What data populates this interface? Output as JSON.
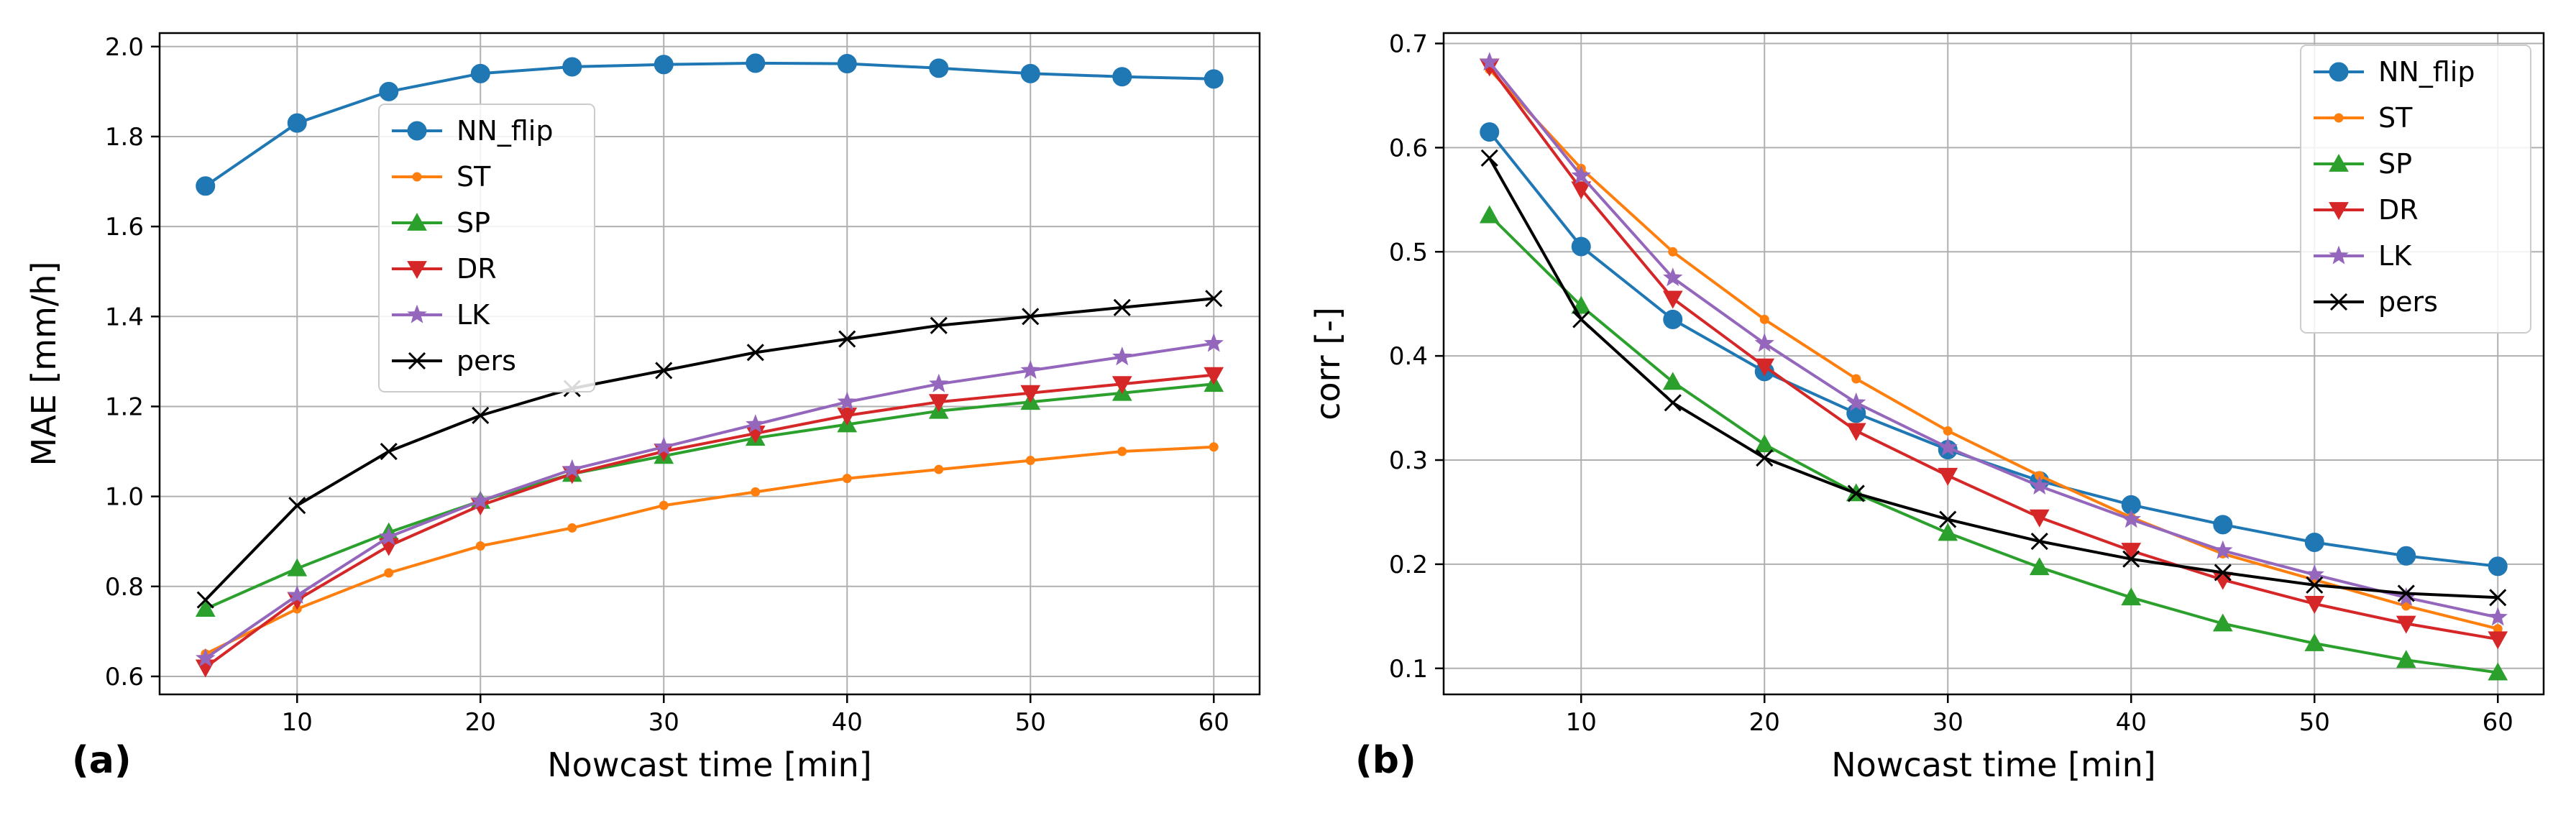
{
  "chart_data": [
    {
      "type": "line",
      "panel_label": "(a)",
      "xlabel": "Nowcast time [min]",
      "ylabel": "MAE [mm/h]",
      "xlim": [
        2.5,
        62.5
      ],
      "ylim": [
        0.56,
        2.03
      ],
      "xticks": [
        10,
        20,
        30,
        40,
        50,
        60
      ],
      "xtick_labels": [
        "10",
        "20",
        "30",
        "40",
        "50",
        "60"
      ],
      "yticks": [
        0.6,
        0.8,
        1.0,
        1.2,
        1.4,
        1.6,
        1.8,
        2.0
      ],
      "ytick_labels": [
        "0.6",
        "0.8",
        "1.0",
        "1.2",
        "1.4",
        "1.6",
        "1.8",
        "2.0"
      ],
      "grid": true,
      "legend_position": "upper-center-left",
      "x": [
        5,
        10,
        15,
        20,
        25,
        30,
        35,
        40,
        45,
        50,
        55,
        60
      ],
      "series": [
        {
          "name": "NN_flip",
          "color": "#1f77b4",
          "marker": "circle",
          "values": [
            1.69,
            1.83,
            1.9,
            1.94,
            1.955,
            1.96,
            1.963,
            1.962,
            1.952,
            1.94,
            1.933,
            1.928
          ]
        },
        {
          "name": "ST",
          "color": "#ff7f0e",
          "marker": "dot",
          "values": [
            0.65,
            0.75,
            0.83,
            0.89,
            0.93,
            0.98,
            1.01,
            1.04,
            1.06,
            1.08,
            1.1,
            1.11
          ]
        },
        {
          "name": "SP",
          "color": "#2ca02c",
          "marker": "triangle-up",
          "values": [
            0.75,
            0.84,
            0.92,
            0.99,
            1.05,
            1.09,
            1.13,
            1.16,
            1.19,
            1.21,
            1.23,
            1.25
          ]
        },
        {
          "name": "DR",
          "color": "#d62728",
          "marker": "triangle-down",
          "values": [
            0.62,
            0.77,
            0.89,
            0.98,
            1.05,
            1.1,
            1.14,
            1.18,
            1.21,
            1.23,
            1.25,
            1.27
          ]
        },
        {
          "name": "LK",
          "color": "#9467bd",
          "marker": "star",
          "values": [
            0.64,
            0.78,
            0.91,
            0.99,
            1.06,
            1.11,
            1.16,
            1.21,
            1.25,
            1.28,
            1.31,
            1.34
          ]
        },
        {
          "name": "pers",
          "color": "#000000",
          "marker": "x",
          "values": [
            0.77,
            0.98,
            1.1,
            1.18,
            1.24,
            1.28,
            1.32,
            1.35,
            1.38,
            1.4,
            1.42,
            1.44
          ]
        }
      ]
    },
    {
      "type": "line",
      "panel_label": "(b)",
      "xlabel": "Nowcast time [min]",
      "ylabel": "corr [-]",
      "xlim": [
        2.5,
        62.5
      ],
      "ylim": [
        0.075,
        0.71
      ],
      "xticks": [
        10,
        20,
        30,
        40,
        50,
        60
      ],
      "xtick_labels": [
        "10",
        "20",
        "30",
        "40",
        "50",
        "60"
      ],
      "yticks": [
        0.1,
        0.2,
        0.3,
        0.4,
        0.5,
        0.6,
        0.7
      ],
      "ytick_labels": [
        "0.1",
        "0.2",
        "0.3",
        "0.4",
        "0.5",
        "0.6",
        "0.7"
      ],
      "grid": true,
      "legend_position": "upper-right",
      "x": [
        5,
        10,
        15,
        20,
        25,
        30,
        35,
        40,
        45,
        50,
        55,
        60
      ],
      "series": [
        {
          "name": "NN_flip",
          "color": "#1f77b4",
          "marker": "circle",
          "values": [
            0.615,
            0.505,
            0.435,
            0.385,
            0.345,
            0.31,
            0.28,
            0.257,
            0.238,
            0.221,
            0.208,
            0.198
          ]
        },
        {
          "name": "ST",
          "color": "#ff7f0e",
          "marker": "dot",
          "values": [
            0.675,
            0.58,
            0.5,
            0.435,
            0.378,
            0.328,
            0.285,
            0.245,
            0.21,
            0.185,
            0.16,
            0.138
          ]
        },
        {
          "name": "SP",
          "color": "#2ca02c",
          "marker": "triangle-up",
          "values": [
            0.535,
            0.448,
            0.375,
            0.315,
            0.268,
            0.23,
            0.197,
            0.168,
            0.143,
            0.124,
            0.108,
            0.096
          ]
        },
        {
          "name": "DR",
          "color": "#d62728",
          "marker": "triangle-down",
          "values": [
            0.678,
            0.56,
            0.455,
            0.39,
            0.328,
            0.285,
            0.245,
            0.213,
            0.185,
            0.162,
            0.143,
            0.128
          ]
        },
        {
          "name": "LK",
          "color": "#9467bd",
          "marker": "star",
          "values": [
            0.682,
            0.573,
            0.475,
            0.412,
            0.355,
            0.312,
            0.275,
            0.243,
            0.213,
            0.19,
            0.168,
            0.149
          ]
        },
        {
          "name": "pers",
          "color": "#000000",
          "marker": "x",
          "values": [
            0.59,
            0.435,
            0.355,
            0.302,
            0.268,
            0.243,
            0.222,
            0.205,
            0.192,
            0.18,
            0.172,
            0.168
          ]
        }
      ]
    }
  ]
}
